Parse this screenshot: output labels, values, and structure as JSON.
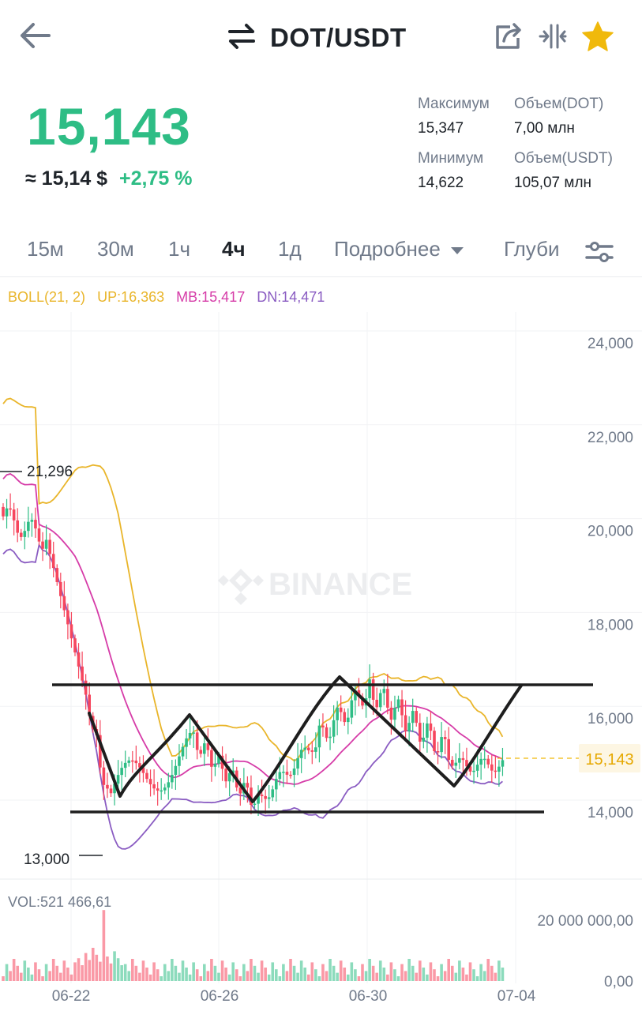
{
  "header": {
    "title": "DOT/USDT",
    "swap_icon": "swap-arrows-icon",
    "back_icon": "arrow-left-icon",
    "share_icon": "share-icon",
    "compare_icon": "compare-arrows-icon",
    "favorite_icon": "star-icon"
  },
  "ticker": {
    "price": "15,143",
    "approx_usd": "≈ 15,14 $",
    "change": "+2,75 %",
    "stats": {
      "high_label": "Максимум",
      "high_value": "15,347",
      "low_label": "Минимум",
      "low_value": "14,622",
      "vol_base_label": "Объем(DOT)",
      "vol_base_value": "7,00 млн",
      "vol_quote_label": "Объем(USDT)",
      "vol_quote_value": "105,07 млн"
    }
  },
  "intervals": {
    "items": [
      "15м",
      "30м",
      "1ч",
      "4ч",
      "1д"
    ],
    "active": "4ч",
    "more_label": "Подробнее",
    "depth_label": "Глуби",
    "settings_icon": "sliders-icon"
  },
  "indicator": {
    "boll": "BOLL(21, 2)",
    "up": "UP:16,363",
    "mb": "MB:15,417",
    "dn": "DN:14,471"
  },
  "chart_data": {
    "type": "candlestick",
    "y_ticks": [
      "24,000",
      "22,000",
      "20,000",
      "18,000",
      "16,000",
      "14,000"
    ],
    "y_tick_values": [
      24000,
      22000,
      20000,
      18000,
      16000,
      14000
    ],
    "ylim": [
      12600,
      24700
    ],
    "x_ticks": [
      "06-22",
      "06-26",
      "06-30",
      "07-04"
    ],
    "high_marker": "21,296",
    "low_marker": "13,000",
    "current_price_label": "15,143",
    "watermark": "BINANCE",
    "colors": {
      "up": "#2ebd85",
      "down": "#f6465d",
      "boll_up": "#e9b52a",
      "boll_mb": "#d63ca8",
      "boll_dn": "#8a5cc2",
      "drawing": "#1e1e1e"
    },
    "volume": {
      "label": "VOL:521 466,61",
      "y_ticks": [
        "20 000 000,00",
        "0,00"
      ]
    }
  }
}
